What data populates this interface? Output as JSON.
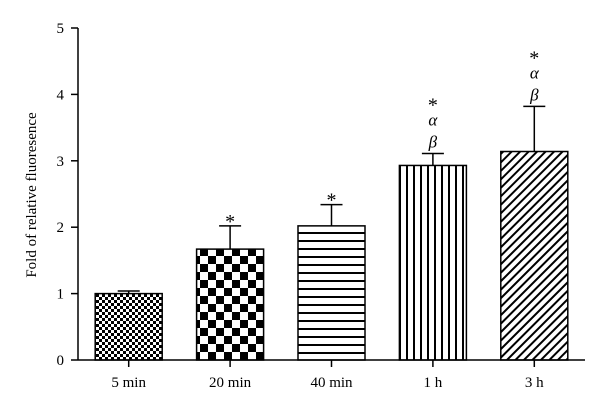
{
  "chart_data": {
    "type": "bar",
    "title": "",
    "xlabel": "",
    "ylabel": "Fold of relative fluoresence",
    "ylim": [
      0,
      5
    ],
    "yticks": [
      0,
      1,
      2,
      3,
      4,
      5
    ],
    "grid": false,
    "legend": "none",
    "categories": [
      "5 min",
      "20 min",
      "40 min",
      "1 h",
      "3 h"
    ],
    "values": [
      1.0,
      1.67,
      2.02,
      2.93,
      3.14
    ],
    "error_plus": [
      0.04,
      0.35,
      0.32,
      0.18,
      0.68
    ],
    "patterns": [
      "small-checker",
      "large-checker",
      "horizontal-lines",
      "vertical-lines",
      "diagonal-lines"
    ],
    "annotations": [
      [],
      [
        "*"
      ],
      [
        "*"
      ],
      [
        "*",
        "α",
        "β"
      ],
      [
        "*",
        "α",
        "β"
      ]
    ]
  }
}
